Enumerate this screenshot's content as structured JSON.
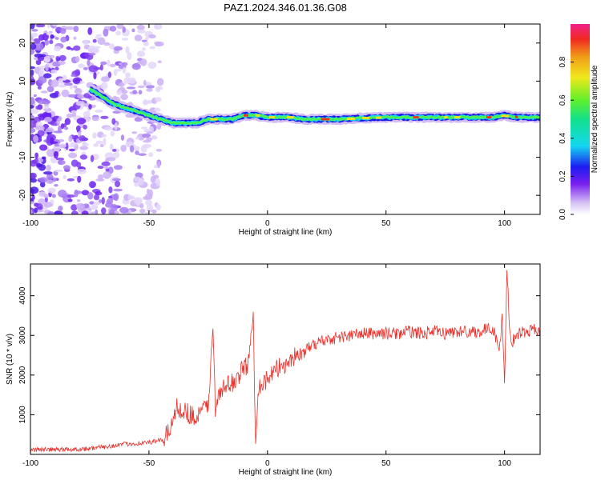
{
  "title": "PAZ1.2024.346.01.36.G08",
  "chart_data": [
    {
      "type": "heatmap",
      "xlabel": "Height of straight line (km)",
      "ylabel": "Frequency (Hz)",
      "xlim": [
        -100,
        115
      ],
      "ylim": [
        -25,
        25
      ],
      "xticks": [
        -100,
        -50,
        0,
        50,
        100
      ],
      "yticks": [
        -20,
        -10,
        0,
        10,
        20
      ],
      "colorbar": {
        "label": "Normalized spectral amplitude",
        "range": [
          0,
          1
        ],
        "ticks": [
          "0.0",
          "0.2",
          "0.4",
          "0.6",
          "0.8"
        ],
        "colormap": "rainbow"
      },
      "ridge": {
        "x": [
          -75,
          -70,
          -65,
          -60,
          -55,
          -50,
          -45,
          -40,
          -35,
          -30,
          -25,
          -20,
          -15,
          -10,
          -5,
          0,
          5,
          10,
          15,
          20,
          25,
          30,
          40,
          50,
          60,
          70,
          80,
          90,
          95,
          100,
          105,
          110,
          115
        ],
        "frequency": [
          8,
          6,
          4,
          3,
          2,
          1,
          0,
          -1,
          -1,
          -1,
          0,
          0,
          0,
          1,
          1,
          0.5,
          0.5,
          0.5,
          0,
          0,
          0,
          0,
          0.3,
          0.5,
          0.5,
          0.5,
          0.5,
          0.5,
          0.5,
          1,
          0.5,
          0.5,
          0.5
        ]
      },
      "noise_region_x": [
        -100,
        -45
      ],
      "grid": false
    },
    {
      "type": "line",
      "xlabel": "Height of straight line (km)",
      "ylabel": "SNR (10 * v/v)",
      "xlim": [
        -100,
        115
      ],
      "ylim": [
        0,
        4800
      ],
      "xticks": [
        -100,
        -50,
        0,
        50,
        100
      ],
      "yticks": [
        1000,
        2000,
        3000,
        4000
      ],
      "color": "#e8312c",
      "grid": false,
      "series": [
        {
          "x": [
            -100,
            -90,
            -80,
            -75,
            -70,
            -65,
            -60,
            -55,
            -50,
            -45,
            -42,
            -40,
            -38,
            -35,
            -32,
            -30,
            -28,
            -25,
            -23,
            -22,
            -20,
            -18,
            -15,
            -12,
            -10,
            -8,
            -6,
            -5,
            -4,
            -2,
            0,
            2,
            5,
            8,
            10,
            12,
            15,
            18,
            20,
            25,
            30,
            35,
            40,
            45,
            50,
            55,
            60,
            65,
            70,
            75,
            80,
            85,
            90,
            95,
            97,
            98,
            99,
            100,
            101,
            102,
            103,
            105,
            108,
            110,
            112,
            115
          ],
          "y": [
            120,
            120,
            130,
            150,
            180,
            220,
            260,
            280,
            300,
            350,
            500,
            900,
            1200,
            1100,
            1000,
            900,
            1050,
            1300,
            3150,
            1200,
            1500,
            1700,
            1800,
            2000,
            2200,
            2300,
            3550,
            300,
            1700,
            1800,
            1900,
            2000,
            2200,
            2300,
            2400,
            2500,
            2550,
            2700,
            2800,
            2900,
            2950,
            3000,
            3050,
            3050,
            3050,
            3050,
            3100,
            3050,
            3100,
            3050,
            3100,
            3100,
            3100,
            3200,
            2800,
            2700,
            3500,
            1600,
            4800,
            3300,
            2800,
            3050,
            3100,
            3050,
            3200,
            3100
          ]
        }
      ]
    }
  ]
}
